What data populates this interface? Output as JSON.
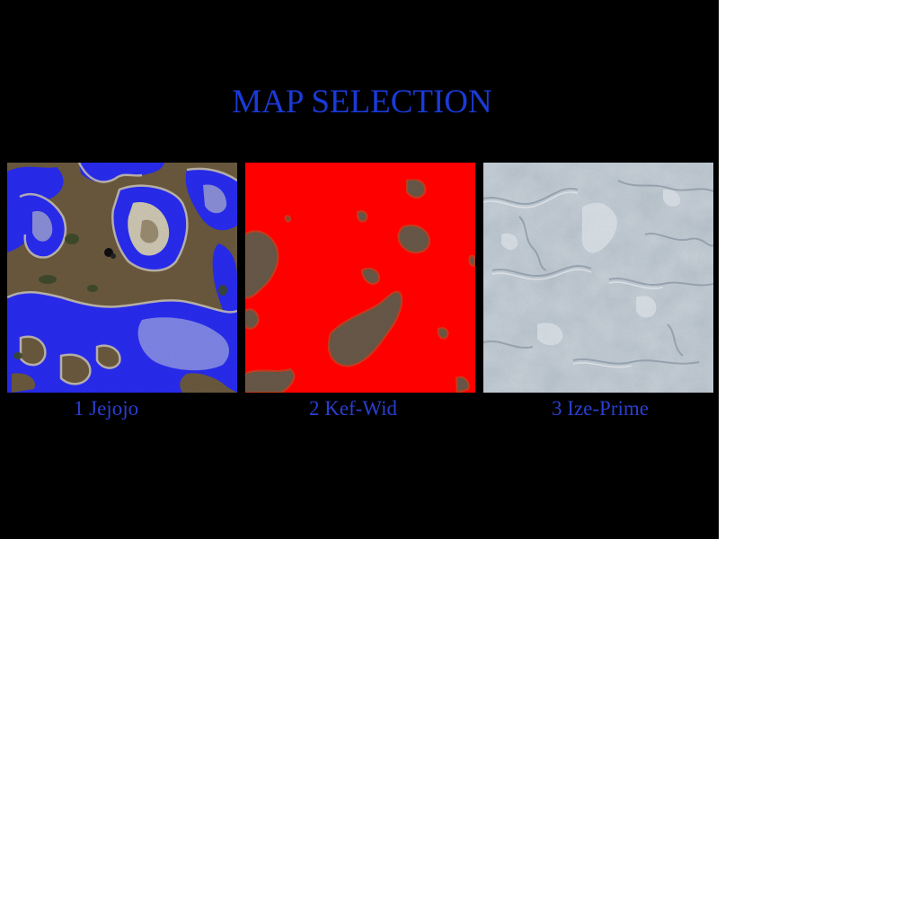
{
  "screen": {
    "title": "MAP SELECTION"
  },
  "maps": [
    {
      "label": "1 Jejojo",
      "terrain": "water-and-dirt",
      "colors": {
        "base": "#6b5a3e",
        "water": "#2a2cf0",
        "light_water": "#7f86e8",
        "shore": "#c9c4b4",
        "vegetation": "#3b4a2a"
      }
    },
    {
      "label": "2 Kef-Wid",
      "terrain": "lava",
      "colors": {
        "base": "#ff0000",
        "rock": "#6a5a4a",
        "rock_edge": "#c84020"
      }
    },
    {
      "label": "3 Ize-Prime",
      "terrain": "ice",
      "colors": {
        "base": "#b7c2cc",
        "highlight": "#dfe6ec",
        "shadow": "#8a98a6"
      }
    }
  ]
}
